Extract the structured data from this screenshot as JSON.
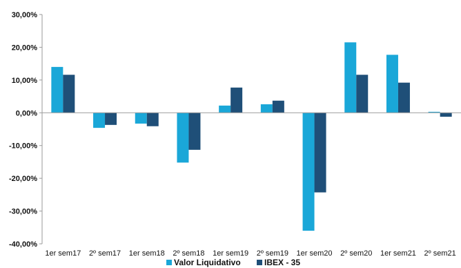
{
  "chart_data": {
    "type": "bar",
    "categories": [
      "1er sem17",
      "2º sem17",
      "1er sem18",
      "2º sem18",
      "1er sem19",
      "2º sem19",
      "1er sem20",
      "2º sem20",
      "1er sem21",
      "2º sem21"
    ],
    "series": [
      {
        "name": "Valor Liquidativo",
        "color": "#1aa7d8",
        "values": [
          14.0,
          -4.6,
          -3.3,
          -15.2,
          2.2,
          2.6,
          -36.0,
          21.5,
          17.7,
          0.3
        ]
      },
      {
        "name": "IBEX - 35",
        "color": "#1f4f78",
        "values": [
          11.6,
          -3.7,
          -4.1,
          -11.3,
          7.7,
          3.7,
          -24.3,
          11.6,
          9.2,
          -1.2
        ]
      }
    ],
    "yticks": [
      "30,00%",
      "20,00%",
      "10,00%",
      "0,00%",
      "-10,00%",
      "-20,00%",
      "-30,00%",
      "-40,00%"
    ],
    "ylim": [
      -40,
      30
    ],
    "grid": false,
    "legend": "bottom"
  }
}
